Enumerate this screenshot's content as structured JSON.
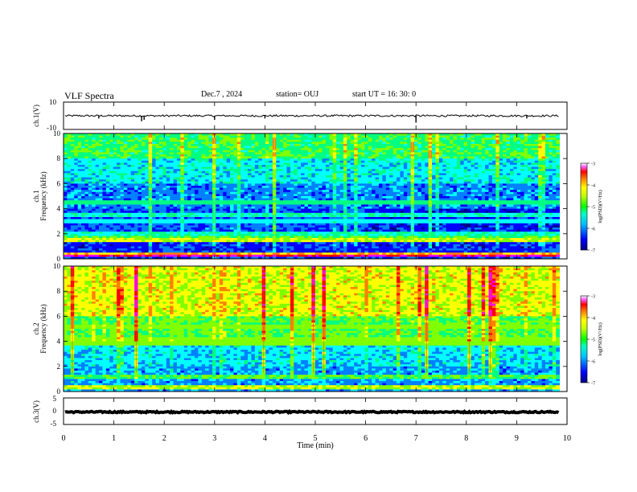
{
  "header": {
    "title": "VLF Spectra",
    "date": "Dec.7 , 2024",
    "station": "station= OUJ",
    "start": "start UT =  16: 30: 0"
  },
  "colors": {
    "colormap": [
      "#00008b",
      "#0000ff",
      "#0080ff",
      "#00ffff",
      "#00ff80",
      "#80ff00",
      "#ffff00",
      "#ff8000",
      "#ff0000",
      "#ff00ff",
      "#ffffff"
    ]
  },
  "chart_data": [
    {
      "type": "line",
      "id": "ch1-waveform",
      "ylabel": "ch.1(V)",
      "ylim": [
        -10,
        10
      ],
      "yticks": [
        "10",
        "-10"
      ],
      "xlim": [
        0,
        10
      ],
      "baseline": 0,
      "spikes": [
        {
          "x": 0.7,
          "y": -2
        },
        {
          "x": 1.55,
          "y": -4
        },
        {
          "x": 1.6,
          "y": -3
        },
        {
          "x": 3.0,
          "y": -3
        },
        {
          "x": 4.0,
          "y": -2
        },
        {
          "x": 7.0,
          "y": -5
        },
        {
          "x": 9.2,
          "y": -2
        }
      ]
    },
    {
      "type": "heatmap",
      "id": "ch1-spectrogram",
      "ylabel": "ch.1\nFrequency (kHz)",
      "xlim": [
        0,
        9.85
      ],
      "ylim": [
        0,
        10
      ],
      "yticks": [
        "0",
        "2",
        "4",
        "6",
        "8",
        "10"
      ],
      "colorbar": {
        "label": "log(PSD)(V²/Hz)",
        "range": [
          -7,
          -3
        ],
        "ticks": [
          "-3",
          "-4",
          "-5",
          "-6",
          "-7"
        ]
      },
      "bands": [
        {
          "f": 0.25,
          "level": 8.5
        },
        {
          "f": 0.45,
          "level": 6.5
        },
        {
          "f": 1.5,
          "level": 5.5
        },
        {
          "f": 1.7,
          "level": 4.5
        },
        {
          "f": 2.0,
          "level": 3.5
        },
        {
          "f": 3.0,
          "level": 3.0
        },
        {
          "f": 3.5,
          "level": 3.5
        },
        {
          "f": 4.5,
          "level": 4.0
        }
      ]
    },
    {
      "type": "heatmap",
      "id": "ch2-spectrogram",
      "ylabel": "ch.2\nFrequency (kHz)",
      "xlim": [
        0,
        9.85
      ],
      "ylim": [
        0,
        10
      ],
      "yticks": [
        "0",
        "2",
        "4",
        "6",
        "8",
        "10"
      ],
      "colorbar": {
        "label": "log(PSD)(V²/Hz)",
        "range": [
          -7,
          -3
        ],
        "ticks": [
          "-3",
          "-4",
          "-5",
          "-6",
          "-7"
        ]
      },
      "bands": [
        {
          "f": 0.3,
          "level": 5.5
        },
        {
          "f": 1.2,
          "level": 4.5
        },
        {
          "f": 3.8,
          "level": 5.0
        },
        {
          "f": 4.2,
          "level": 5.0
        },
        {
          "f": 5.2,
          "level": 5.0
        }
      ]
    },
    {
      "type": "line",
      "id": "ch3-waveform",
      "ylabel": "ch.3(V)",
      "ylim": [
        -5,
        5
      ],
      "yticks": [
        "5",
        "0",
        "-5"
      ],
      "xlim": [
        0,
        10
      ],
      "baseline": -0.3,
      "xlabel": "Time (min)",
      "xticks": [
        "0",
        "1",
        "2",
        "3",
        "4",
        "5",
        "6",
        "7",
        "8",
        "9",
        "10"
      ]
    }
  ]
}
